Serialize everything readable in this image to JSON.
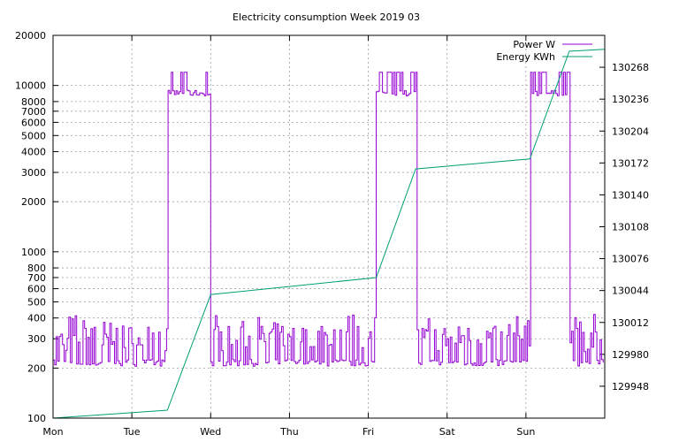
{
  "chart_data": {
    "type": "line",
    "title": "Electricity consumption Week 2019 03",
    "x_ticks": [
      "Mon",
      "Tue",
      "Wed",
      "Thu",
      "Fri",
      "Sat",
      "Sun"
    ],
    "x_range_days": [
      0,
      7
    ],
    "y_left": {
      "scale": "log",
      "range": [
        100,
        20000
      ],
      "ticks": [
        "100",
        "200",
        "300",
        "400",
        "500",
        "600",
        "700",
        "800",
        "1000",
        "2000",
        "3000",
        "4000",
        "5000",
        "6000",
        "7000",
        "8000",
        "10000",
        "20000"
      ]
    },
    "y_right": {
      "scale": "linear",
      "range": [
        129916,
        130300
      ],
      "ticks": [
        "129948",
        "129980",
        "130012",
        "130044",
        "130076",
        "130108",
        "130140",
        "130172",
        "130204",
        "130236",
        "130268"
      ]
    },
    "grid": true,
    "legend_position": "top-right",
    "series": [
      {
        "name": "Power W",
        "axis": "left",
        "color": "#9400d3",
        "description": "Baseline ~210–420 W with spikes to ~9000–12000 W during heating periods",
        "high_periods_days": [
          [
            1.45,
            2.0
          ],
          [
            4.1,
            4.6
          ],
          [
            6.05,
            6.55
          ]
        ],
        "high_level": 9000,
        "high_peak": 12000,
        "baseline_range": [
          205,
          420
        ]
      },
      {
        "name": "Energy KWh",
        "axis": "right",
        "color": "#009e73",
        "points": [
          {
            "x": "Mon",
            "day": 0.0,
            "y": 129916
          },
          {
            "x": "Tue",
            "day": 1.45,
            "y": 129924
          },
          {
            "x": "Wed",
            "day": 2.0,
            "y": 130040
          },
          {
            "x": "Fri",
            "day": 4.1,
            "y": 130057
          },
          {
            "x": "Fri",
            "day": 4.6,
            "y": 130166
          },
          {
            "x": "Sun",
            "day": 6.05,
            "y": 130176
          },
          {
            "x": "Sun",
            "day": 6.55,
            "y": 130284
          },
          {
            "x": "Sun",
            "day": 7.0,
            "y": 130286
          }
        ]
      }
    ]
  }
}
